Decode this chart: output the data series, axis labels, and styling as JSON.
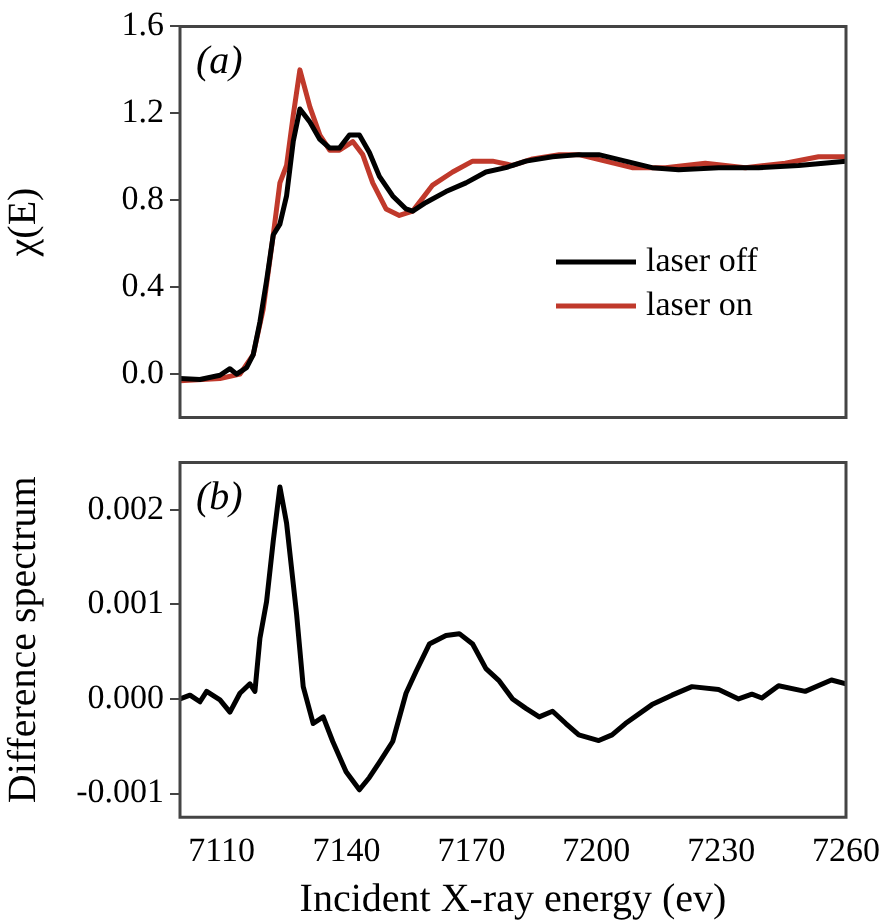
{
  "chart_data": [
    {
      "type": "line",
      "ylabel": "χ(E)",
      "annotations": [
        "(a)"
      ],
      "legend": "right",
      "tick_labels": "y",
      "grid": false,
      "xlim": [
        7100,
        7260
      ],
      "xticks": [
        7110,
        7140,
        7170,
        7200,
        7230,
        7260
      ],
      "ylim": [
        -0.2,
        1.6
      ],
      "yticks": [
        {
          "value": 0,
          "label": "0.0"
        },
        0.4,
        0.8,
        1.2,
        1.6
      ],
      "series": [
        {
          "name": "laser off",
          "color": "#000000",
          "x": [
            7100,
            7104.8,
            7109.6,
            7112,
            7113.6,
            7116,
            7117.6,
            7119.2,
            7120.8,
            7122.4,
            7124,
            7125.6,
            7127.2,
            7128.8,
            7131.2,
            7133.6,
            7136,
            7138.3,
            7140.7,
            7143.1,
            7145.5,
            7147.9,
            7151.1,
            7154.3,
            7155.9,
            7159.1,
            7163.9,
            7168.7,
            7173.5,
            7178.3,
            7183.1,
            7189.5,
            7195.8,
            7200.6,
            7207,
            7213.4,
            7219.8,
            7229.4,
            7239,
            7248.6,
            7260
          ],
          "values": [
            -0.02,
            -0.025,
            -0.005,
            0.025,
            0,
            0.03,
            0.09,
            0.24,
            0.43,
            0.64,
            0.69,
            0.82,
            1.07,
            1.22,
            1.16,
            1.08,
            1.04,
            1.04,
            1.1,
            1.1,
            1.02,
            0.91,
            0.82,
            0.76,
            0.75,
            0.79,
            0.84,
            0.88,
            0.93,
            0.95,
            0.98,
            1,
            1.01,
            1.01,
            0.98,
            0.95,
            0.94,
            0.95,
            0.95,
            0.96,
            0.98
          ]
        },
        {
          "name": "laser on",
          "color": "#c0392b",
          "x": [
            7100,
            7109.6,
            7114.4,
            7117.6,
            7120,
            7122.4,
            7124,
            7125.6,
            7127.2,
            7128.8,
            7131.2,
            7133.6,
            7136,
            7138.3,
            7141.5,
            7143.9,
            7146.3,
            7149.5,
            7152.7,
            7155.9,
            7160.7,
            7165.5,
            7170.3,
            7175.1,
            7179.9,
            7184.7,
            7191.1,
            7195.8,
            7202.2,
            7208.6,
            7216.6,
            7226.2,
            7235.8,
            7245.4,
            7253.4,
            7260
          ],
          "values": [
            -0.03,
            -0.02,
            0,
            0.09,
            0.3,
            0.64,
            0.88,
            0.96,
            1.19,
            1.4,
            1.23,
            1.1,
            1.03,
            1.03,
            1.07,
            1.01,
            0.88,
            0.76,
            0.73,
            0.75,
            0.87,
            0.93,
            0.98,
            0.98,
            0.96,
            0.99,
            1.01,
            1.01,
            0.98,
            0.95,
            0.95,
            0.97,
            0.95,
            0.97,
            1,
            1
          ]
        }
      ]
    },
    {
      "type": "line",
      "xlabel": "Incident X-ray energy (ev)",
      "ylabel": "Difference spectrum",
      "annotations": [
        "(b)"
      ],
      "grid": false,
      "xlim": [
        7100,
        7260
      ],
      "xticks": [
        7110,
        7140,
        7170,
        7200,
        7230,
        7260
      ],
      "ylim": [
        -0.00125,
        0.0025
      ],
      "yticks": [
        -0.001,
        {
          "value": 0,
          "label": "0.000"
        },
        0.001,
        0.002
      ],
      "series": [
        {
          "color": "#000000",
          "x": [
            7100,
            7102.4,
            7104.8,
            7106.4,
            7109.6,
            7112,
            7114.4,
            7116.8,
            7118,
            7119.2,
            7120.8,
            7122.4,
            7124,
            7125.6,
            7128,
            7129.6,
            7132,
            7134.4,
            7136.7,
            7139.9,
            7143.1,
            7145.5,
            7147.9,
            7151.1,
            7154.3,
            7156.7,
            7159.9,
            7163.9,
            7167.1,
            7170.3,
            7173.5,
            7176.7,
            7179.9,
            7183.1,
            7186.3,
            7189.5,
            7192.7,
            7195.8,
            7200.6,
            7203.8,
            7207,
            7213.4,
            7218.2,
            7223,
            7229.4,
            7234.2,
            7237.4,
            7239.8,
            7243.8,
            7250.2,
            7256.5,
            7260
          ],
          "values": [
            0,
            4e-05,
            -3e-05,
            8e-05,
            -1e-05,
            -0.00014,
            6e-05,
            0.00016,
            8e-05,
            0.00064,
            0.00103,
            0.00167,
            0.00224,
            0.00186,
            0.0009,
            0.00013,
            -0.00026,
            -0.00019,
            -0.00045,
            -0.00077,
            -0.00096,
            -0.00083,
            -0.00067,
            -0.00045,
            6e-05,
            0.00029,
            0.00058,
            0.00067,
            0.00069,
            0.00058,
            0.00032,
            0.00019,
            0,
            -0.0001,
            -0.00019,
            -0.00013,
            -0.00026,
            -0.00038,
            -0.00044,
            -0.00038,
            -0.00026,
            -6e-05,
            4e-05,
            0.00013,
            0.0001,
            0,
            5e-05,
            1e-05,
            0.00014,
            8e-05,
            0.0002,
            0.00016
          ]
        }
      ]
    }
  ]
}
